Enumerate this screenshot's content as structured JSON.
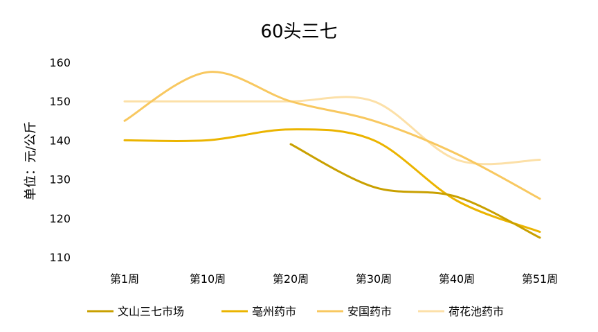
{
  "chart_data": {
    "type": "line",
    "title": "60头三七",
    "xlabel": "",
    "ylabel": "单位：元/公斤",
    "categories": [
      "第1周",
      "第10周",
      "第20周",
      "第30周",
      "第40周",
      "第51周"
    ],
    "ylim": [
      110,
      160
    ],
    "yticks": [
      110,
      120,
      130,
      140,
      150,
      160
    ],
    "grid": false,
    "legend_position": "bottom",
    "smooth": true,
    "series": [
      {
        "name": "文山三七市场",
        "color": "#C9A000",
        "values": [
          null,
          null,
          139,
          128,
          125.5,
          115
        ]
      },
      {
        "name": "亳州药市",
        "color": "#EBB400",
        "values": [
          140,
          140,
          142.8,
          140,
          124.5,
          116.5
        ]
      },
      {
        "name": "安国药市",
        "color": "#F8C860",
        "values": [
          145,
          157.5,
          150,
          145,
          136.5,
          125
        ]
      },
      {
        "name": "荷花池药市",
        "color": "#FCE0A8",
        "values": [
          150,
          150,
          150,
          150,
          135,
          135
        ]
      }
    ]
  }
}
